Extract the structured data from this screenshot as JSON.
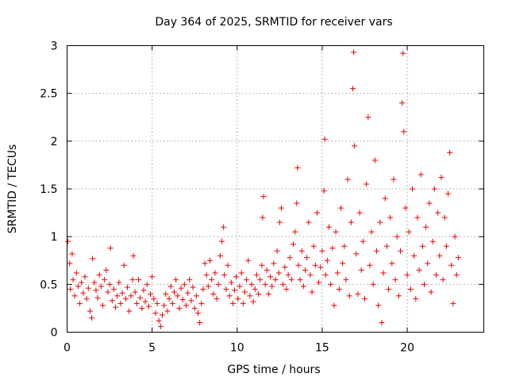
{
  "chart_data": {
    "type": "scatter",
    "title": "Day 364 of 2025, SRMTID for receiver vars",
    "xlabel": "GPS time / hours",
    "ylabel": "SRMTID / TECUs",
    "xlim": [
      0,
      24.5
    ],
    "ylim": [
      0,
      3
    ],
    "xticks": [
      0,
      5,
      10,
      15,
      20
    ],
    "yticks": [
      0,
      0.5,
      1,
      1.5,
      2,
      2.5,
      3
    ],
    "ytick_labels": [
      "0",
      "0.5",
      "1",
      "1.5",
      "2",
      "2.5",
      "3"
    ],
    "grid": true,
    "marker": "+",
    "color": "#ee0000",
    "series": [
      {
        "name": "SRMTID",
        "points": [
          [
            0.05,
            0.95
          ],
          [
            0.15,
            0.72
          ],
          [
            0.2,
            0.45
          ],
          [
            0.3,
            0.82
          ],
          [
            0.35,
            0.55
          ],
          [
            0.45,
            0.38
          ],
          [
            0.55,
            0.62
          ],
          [
            0.65,
            0.48
          ],
          [
            0.75,
            0.3
          ],
          [
            0.85,
            0.52
          ],
          [
            0.95,
            0.41
          ],
          [
            1.05,
            0.58
          ],
          [
            1.15,
            0.35
          ],
          [
            1.25,
            0.46
          ],
          [
            1.35,
            0.22
          ],
          [
            1.45,
            0.15
          ],
          [
            1.5,
            0.77
          ],
          [
            1.6,
            0.52
          ],
          [
            1.7,
            0.44
          ],
          [
            1.8,
            0.36
          ],
          [
            1.9,
            0.6
          ],
          [
            2.0,
            0.48
          ],
          [
            2.1,
            0.28
          ],
          [
            2.2,
            0.55
          ],
          [
            2.3,
            0.65
          ],
          [
            2.4,
            0.42
          ],
          [
            2.5,
            0.5
          ],
          [
            2.55,
            0.88
          ],
          [
            2.65,
            0.33
          ],
          [
            2.75,
            0.45
          ],
          [
            2.85,
            0.26
          ],
          [
            2.95,
            0.38
          ],
          [
            3.05,
            0.52
          ],
          [
            3.15,
            0.3
          ],
          [
            3.25,
            0.41
          ],
          [
            3.35,
            0.7
          ],
          [
            3.45,
            0.35
          ],
          [
            3.55,
            0.47
          ],
          [
            3.65,
            0.22
          ],
          [
            3.75,
            0.38
          ],
          [
            3.85,
            0.55
          ],
          [
            3.9,
            0.8
          ],
          [
            4.0,
            0.42
          ],
          [
            4.1,
            0.3
          ],
          [
            4.2,
            0.55
          ],
          [
            4.3,
            0.36
          ],
          [
            4.4,
            0.25
          ],
          [
            4.5,
            0.44
          ],
          [
            4.6,
            0.32
          ],
          [
            4.7,
            0.5
          ],
          [
            4.8,
            0.27
          ],
          [
            4.9,
            0.4
          ],
          [
            5.0,
            0.58
          ],
          [
            5.1,
            0.35
          ],
          [
            5.2,
            0.2
          ],
          [
            5.3,
            0.3
          ],
          [
            5.4,
            0.12
          ],
          [
            5.5,
            0.06
          ],
          [
            5.6,
            0.18
          ],
          [
            5.7,
            0.28
          ],
          [
            5.8,
            0.4
          ],
          [
            5.9,
            0.22
          ],
          [
            6.0,
            0.35
          ],
          [
            6.1,
            0.48
          ],
          [
            6.2,
            0.3
          ],
          [
            6.3,
            0.42
          ],
          [
            6.4,
            0.55
          ],
          [
            6.5,
            0.38
          ],
          [
            6.6,
            0.25
          ],
          [
            6.7,
            0.46
          ],
          [
            6.8,
            0.34
          ],
          [
            6.9,
            0.5
          ],
          [
            7.0,
            0.28
          ],
          [
            7.1,
            0.41
          ],
          [
            7.2,
            0.55
          ],
          [
            7.3,
            0.33
          ],
          [
            7.4,
            0.47
          ],
          [
            7.5,
            0.25
          ],
          [
            7.6,
            0.38
          ],
          [
            7.7,
            0.2
          ],
          [
            7.8,
            0.1
          ],
          [
            7.9,
            0.3
          ],
          [
            8.0,
            0.45
          ],
          [
            8.1,
            0.72
          ],
          [
            8.2,
            0.6
          ],
          [
            8.3,
            0.48
          ],
          [
            8.4,
            0.75
          ],
          [
            8.5,
            0.55
          ],
          [
            8.6,
            0.4
          ],
          [
            8.7,
            0.62
          ],
          [
            8.8,
            0.35
          ],
          [
            8.9,
            0.5
          ],
          [
            9.0,
            0.8
          ],
          [
            9.1,
            0.95
          ],
          [
            9.2,
            1.1
          ],
          [
            9.25,
            0.6
          ],
          [
            9.35,
            0.45
          ],
          [
            9.45,
            0.7
          ],
          [
            9.55,
            0.38
          ],
          [
            9.65,
            0.52
          ],
          [
            9.75,
            0.3
          ],
          [
            9.85,
            0.44
          ],
          [
            9.95,
            0.58
          ],
          [
            10.05,
            0.35
          ],
          [
            10.15,
            0.48
          ],
          [
            10.25,
            0.62
          ],
          [
            10.35,
            0.3
          ],
          [
            10.45,
            0.42
          ],
          [
            10.55,
            0.55
          ],
          [
            10.65,
            0.75
          ],
          [
            10.75,
            0.38
          ],
          [
            10.85,
            0.5
          ],
          [
            10.95,
            0.32
          ],
          [
            11.05,
            0.45
          ],
          [
            11.15,
            0.6
          ],
          [
            11.25,
            0.4
          ],
          [
            11.35,
            0.55
          ],
          [
            11.45,
            0.7
          ],
          [
            11.5,
            1.2
          ],
          [
            11.55,
            1.42
          ],
          [
            11.65,
            0.5
          ],
          [
            11.75,
            0.65
          ],
          [
            11.85,
            0.4
          ],
          [
            11.95,
            0.58
          ],
          [
            12.05,
            0.48
          ],
          [
            12.15,
            0.72
          ],
          [
            12.25,
            0.55
          ],
          [
            12.35,
            0.85
          ],
          [
            12.45,
            0.62
          ],
          [
            12.5,
            1.15
          ],
          [
            12.6,
            1.3
          ],
          [
            12.7,
            0.5
          ],
          [
            12.8,
            0.68
          ],
          [
            12.9,
            0.45
          ],
          [
            13.0,
            0.6
          ],
          [
            13.1,
            0.78
          ],
          [
            13.2,
            0.55
          ],
          [
            13.3,
            0.92
          ],
          [
            13.4,
            1.05
          ],
          [
            13.5,
            1.35
          ],
          [
            13.55,
            1.72
          ],
          [
            13.6,
            0.7
          ],
          [
            13.7,
            0.55
          ],
          [
            13.8,
            0.85
          ],
          [
            13.9,
            0.48
          ],
          [
            14.0,
            0.65
          ],
          [
            14.1,
            0.78
          ],
          [
            14.2,
            1.15
          ],
          [
            14.3,
            0.6
          ],
          [
            14.4,
            0.42
          ],
          [
            14.5,
            0.9
          ],
          [
            14.6,
            0.7
          ],
          [
            14.7,
            1.25
          ],
          [
            14.8,
            0.52
          ],
          [
            14.9,
            0.68
          ],
          [
            15.0,
            0.85
          ],
          [
            15.1,
            1.48
          ],
          [
            15.15,
            2.02
          ],
          [
            15.2,
            0.6
          ],
          [
            15.3,
            0.75
          ],
          [
            15.4,
            1.1
          ],
          [
            15.5,
            0.5
          ],
          [
            15.6,
            0.88
          ],
          [
            15.7,
            0.28
          ],
          [
            15.8,
            1.05
          ],
          [
            15.9,
            0.62
          ],
          [
            16.0,
            0.45
          ],
          [
            16.1,
            1.3
          ],
          [
            16.2,
            0.72
          ],
          [
            16.3,
            0.9
          ],
          [
            16.4,
            0.55
          ],
          [
            16.5,
            1.6
          ],
          [
            16.6,
            0.38
          ],
          [
            16.7,
            1.15
          ],
          [
            16.8,
            2.55
          ],
          [
            16.85,
            2.93
          ],
          [
            16.9,
            1.95
          ],
          [
            17.0,
            0.82
          ],
          [
            17.1,
            0.4
          ],
          [
            17.2,
            1.25
          ],
          [
            17.3,
            0.65
          ],
          [
            17.4,
            0.95
          ],
          [
            17.5,
            0.35
          ],
          [
            17.6,
            1.55
          ],
          [
            17.7,
            2.25
          ],
          [
            17.8,
            0.7
          ],
          [
            17.9,
            1.05
          ],
          [
            18.0,
            0.5
          ],
          [
            18.1,
            1.8
          ],
          [
            18.2,
            0.85
          ],
          [
            18.3,
            0.28
          ],
          [
            18.4,
            1.15
          ],
          [
            18.5,
            0.1
          ],
          [
            18.6,
            0.62
          ],
          [
            18.7,
            1.4
          ],
          [
            18.8,
            0.9
          ],
          [
            18.9,
            0.45
          ],
          [
            19.0,
            1.2
          ],
          [
            19.1,
            0.72
          ],
          [
            19.2,
            1.6
          ],
          [
            19.3,
            0.55
          ],
          [
            19.4,
            1.0
          ],
          [
            19.5,
            0.38
          ],
          [
            19.6,
            0.85
          ],
          [
            19.7,
            2.4
          ],
          [
            19.75,
            2.92
          ],
          [
            19.8,
            2.1
          ],
          [
            19.9,
            1.3
          ],
          [
            20.0,
            0.6
          ],
          [
            20.1,
            1.05
          ],
          [
            20.2,
            0.45
          ],
          [
            20.3,
            1.5
          ],
          [
            20.4,
            0.8
          ],
          [
            20.5,
            0.35
          ],
          [
            20.6,
            1.2
          ],
          [
            20.7,
            0.65
          ],
          [
            20.8,
            1.65
          ],
          [
            20.9,
            0.9
          ],
          [
            21.0,
            0.5
          ],
          [
            21.1,
            1.1
          ],
          [
            21.2,
            0.72
          ],
          [
            21.3,
            1.35
          ],
          [
            21.4,
            0.42
          ],
          [
            21.5,
            0.95
          ],
          [
            21.6,
            1.5
          ],
          [
            21.7,
            0.6
          ],
          [
            21.8,
            1.25
          ],
          [
            21.9,
            0.8
          ],
          [
            22.0,
            1.62
          ],
          [
            22.1,
            0.55
          ],
          [
            22.2,
            1.2
          ],
          [
            22.3,
            0.9
          ],
          [
            22.4,
            1.45
          ],
          [
            22.5,
            1.88
          ],
          [
            22.6,
            0.7
          ],
          [
            22.7,
            0.3
          ],
          [
            22.8,
            1.0
          ],
          [
            22.9,
            0.6
          ],
          [
            23.0,
            0.78
          ]
        ]
      }
    ]
  }
}
